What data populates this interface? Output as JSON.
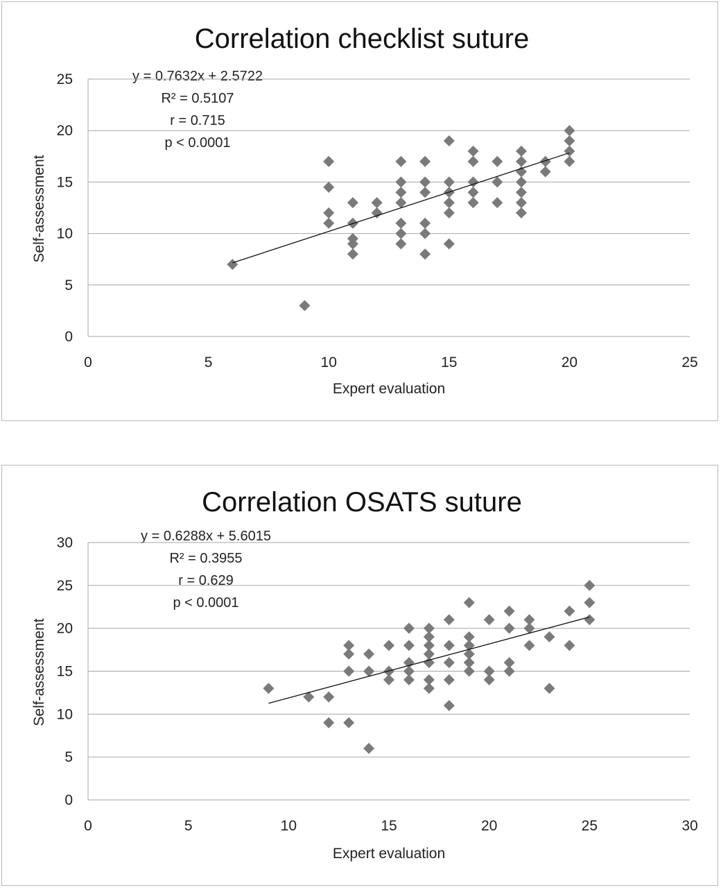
{
  "chart_data": [
    {
      "type": "scatter",
      "title": "Correlation checklist suture",
      "xlabel": "Expert evaluation",
      "ylabel": "Self-assessment",
      "xlim": [
        0,
        25
      ],
      "ylim": [
        0,
        25
      ],
      "x_ticks": [
        "0",
        "5",
        "10",
        "15",
        "20",
        "25"
      ],
      "y_ticks": [
        "0",
        "5",
        "10",
        "15",
        "20",
        "25"
      ],
      "grid": "horizontal",
      "annotations": [
        "y = 0.7632x + 2.5722",
        "R² = 0.5107",
        "r = 0.715",
        "p < 0.0001"
      ],
      "trendline": {
        "slope": 0.7632,
        "intercept": 2.5722,
        "x_range": [
          6,
          20
        ]
      },
      "points": [
        [
          6,
          7
        ],
        [
          9,
          3
        ],
        [
          10,
          17
        ],
        [
          10,
          14.5
        ],
        [
          10,
          12
        ],
        [
          10,
          11
        ],
        [
          11,
          13
        ],
        [
          11,
          11
        ],
        [
          11,
          9.5
        ],
        [
          11,
          9
        ],
        [
          11,
          8
        ],
        [
          12,
          13
        ],
        [
          12,
          12
        ],
        [
          13,
          17
        ],
        [
          13,
          15
        ],
        [
          13,
          14
        ],
        [
          13,
          13
        ],
        [
          13,
          11
        ],
        [
          13,
          10
        ],
        [
          13,
          9
        ],
        [
          14,
          17
        ],
        [
          14,
          15
        ],
        [
          14,
          14
        ],
        [
          14,
          11
        ],
        [
          14,
          10
        ],
        [
          14,
          8
        ],
        [
          15,
          19
        ],
        [
          15,
          15
        ],
        [
          15,
          14
        ],
        [
          15,
          13
        ],
        [
          15,
          12
        ],
        [
          15,
          9
        ],
        [
          16,
          18
        ],
        [
          16,
          17
        ],
        [
          16,
          15
        ],
        [
          16,
          14
        ],
        [
          16,
          13
        ],
        [
          17,
          17
        ],
        [
          17,
          15
        ],
        [
          17,
          13
        ],
        [
          18,
          18
        ],
        [
          18,
          17
        ],
        [
          18,
          16
        ],
        [
          18,
          15
        ],
        [
          18,
          14
        ],
        [
          18,
          13
        ],
        [
          18,
          12
        ],
        [
          19,
          17
        ],
        [
          19,
          16
        ],
        [
          20,
          20
        ],
        [
          20,
          19
        ],
        [
          20,
          18
        ],
        [
          20,
          17
        ]
      ]
    },
    {
      "type": "scatter",
      "title": "Correlation OSATS suture",
      "xlabel": "Expert evaluation",
      "ylabel": "Self-assessment",
      "xlim": [
        0,
        30
      ],
      "ylim": [
        0,
        30
      ],
      "x_ticks": [
        "0",
        "5",
        "10",
        "15",
        "20",
        "25",
        "30"
      ],
      "y_ticks": [
        "0",
        "5",
        "10",
        "15",
        "20",
        "25",
        "30"
      ],
      "grid": "horizontal",
      "annotations": [
        "y = 0.6288x + 5.6015",
        "R² = 0.3955",
        "r = 0.629",
        "p < 0.0001"
      ],
      "trendline": {
        "slope": 0.6288,
        "intercept": 5.6015,
        "x_range": [
          9,
          25
        ]
      },
      "points": [
        [
          9,
          13
        ],
        [
          11,
          12
        ],
        [
          12,
          12
        ],
        [
          12,
          9
        ],
        [
          13,
          18
        ],
        [
          13,
          17
        ],
        [
          13,
          15
        ],
        [
          13,
          9
        ],
        [
          14,
          17
        ],
        [
          14,
          15
        ],
        [
          14,
          6
        ],
        [
          15,
          18
        ],
        [
          15,
          15
        ],
        [
          15,
          14
        ],
        [
          16,
          20
        ],
        [
          16,
          18
        ],
        [
          16,
          16
        ],
        [
          16,
          15
        ],
        [
          16,
          14
        ],
        [
          17,
          20
        ],
        [
          17,
          19
        ],
        [
          17,
          18
        ],
        [
          17,
          17
        ],
        [
          17,
          16
        ],
        [
          17,
          14
        ],
        [
          17,
          13
        ],
        [
          18,
          21
        ],
        [
          18,
          18
        ],
        [
          18,
          16
        ],
        [
          18,
          14
        ],
        [
          18,
          11
        ],
        [
          19,
          23
        ],
        [
          19,
          19
        ],
        [
          19,
          18
        ],
        [
          19,
          17
        ],
        [
          19,
          16
        ],
        [
          19,
          15
        ],
        [
          20,
          21
        ],
        [
          20,
          15
        ],
        [
          20,
          14
        ],
        [
          21,
          22
        ],
        [
          21,
          20
        ],
        [
          21,
          16
        ],
        [
          21,
          15
        ],
        [
          22,
          21
        ],
        [
          22,
          20
        ],
        [
          22,
          18
        ],
        [
          23,
          19
        ],
        [
          23,
          13
        ],
        [
          24,
          22
        ],
        [
          24,
          18
        ],
        [
          25,
          25
        ],
        [
          25,
          23
        ],
        [
          25,
          21
        ]
      ]
    }
  ]
}
